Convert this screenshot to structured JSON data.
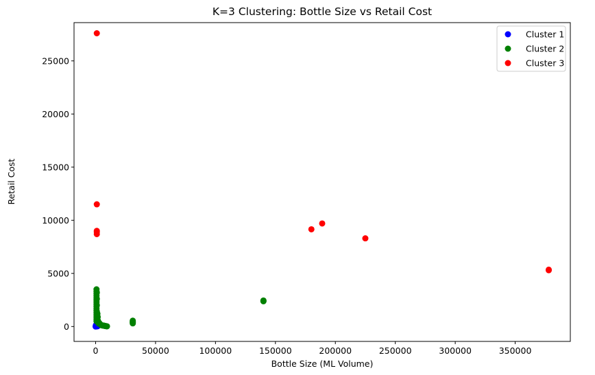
{
  "chart_data": {
    "type": "scatter",
    "title": "K=3 Clustering: Bottle Size vs Retail Cost",
    "xlabel": "Bottle Size (ML Volume)",
    "ylabel": "Retail Cost",
    "xlim": [
      -18000,
      396000
    ],
    "ylim": [
      -1400,
      28600
    ],
    "xticks": [
      0,
      50000,
      100000,
      150000,
      200000,
      250000,
      300000,
      350000
    ],
    "xtick_labels": [
      "0",
      "50000",
      "100000",
      "150000",
      "200000",
      "250000",
      "300000",
      "350000"
    ],
    "yticks": [
      0,
      5000,
      10000,
      15000,
      20000,
      25000
    ],
    "ytick_labels": [
      "0",
      "5000",
      "10000",
      "15000",
      "20000",
      "25000"
    ],
    "grid": false,
    "legend_position": "top-right",
    "series": [
      {
        "name": "Cluster 1",
        "color": "#0000ff",
        "points": [
          [
            0,
            0
          ],
          [
            300,
            20
          ],
          [
            750,
            15
          ],
          [
            1000,
            30
          ],
          [
            1500,
            25
          ],
          [
            500,
            60
          ],
          [
            1200,
            80
          ],
          [
            200,
            120
          ],
          [
            900,
            150
          ],
          [
            1750,
            50
          ]
        ]
      },
      {
        "name": "Cluster 2",
        "color": "#008000",
        "points": [
          [
            750,
            3500
          ],
          [
            750,
            3300
          ],
          [
            750,
            3100
          ],
          [
            750,
            2900
          ],
          [
            750,
            2700
          ],
          [
            750,
            2500
          ],
          [
            750,
            2300
          ],
          [
            750,
            2100
          ],
          [
            750,
            1900
          ],
          [
            750,
            1700
          ],
          [
            750,
            1500
          ],
          [
            750,
            1300
          ],
          [
            750,
            1100
          ],
          [
            750,
            900
          ],
          [
            750,
            700
          ],
          [
            750,
            500
          ],
          [
            1000,
            3200
          ],
          [
            1000,
            2600
          ],
          [
            1000,
            2000
          ],
          [
            1000,
            1400
          ],
          [
            1000,
            800
          ],
          [
            1500,
            1200
          ],
          [
            1750,
            900
          ],
          [
            1750,
            600
          ],
          [
            2000,
            400
          ],
          [
            2500,
            300
          ],
          [
            3000,
            350
          ],
          [
            3500,
            250
          ],
          [
            4000,
            200
          ],
          [
            4500,
            150
          ],
          [
            5000,
            120
          ],
          [
            5500,
            100
          ],
          [
            6000,
            100
          ],
          [
            6500,
            90
          ],
          [
            7000,
            80
          ],
          [
            7500,
            60
          ],
          [
            8000,
            50
          ],
          [
            8500,
            40
          ],
          [
            9000,
            30
          ],
          [
            9500,
            20
          ],
          [
            31000,
            550
          ],
          [
            31000,
            480
          ],
          [
            31000,
            420
          ],
          [
            31000,
            360
          ],
          [
            31000,
            300
          ],
          [
            140000,
            2450
          ],
          [
            140000,
            2400
          ],
          [
            140000,
            2380
          ]
        ]
      },
      {
        "name": "Cluster 3",
        "color": "#ff0000",
        "points": [
          [
            1000,
            27600
          ],
          [
            1000,
            11500
          ],
          [
            1000,
            9000
          ],
          [
            1000,
            8900
          ],
          [
            1000,
            8700
          ],
          [
            180000,
            9150
          ],
          [
            189000,
            9700
          ],
          [
            225000,
            8300
          ],
          [
            378000,
            5300
          ],
          [
            378000,
            5350
          ]
        ]
      }
    ]
  }
}
